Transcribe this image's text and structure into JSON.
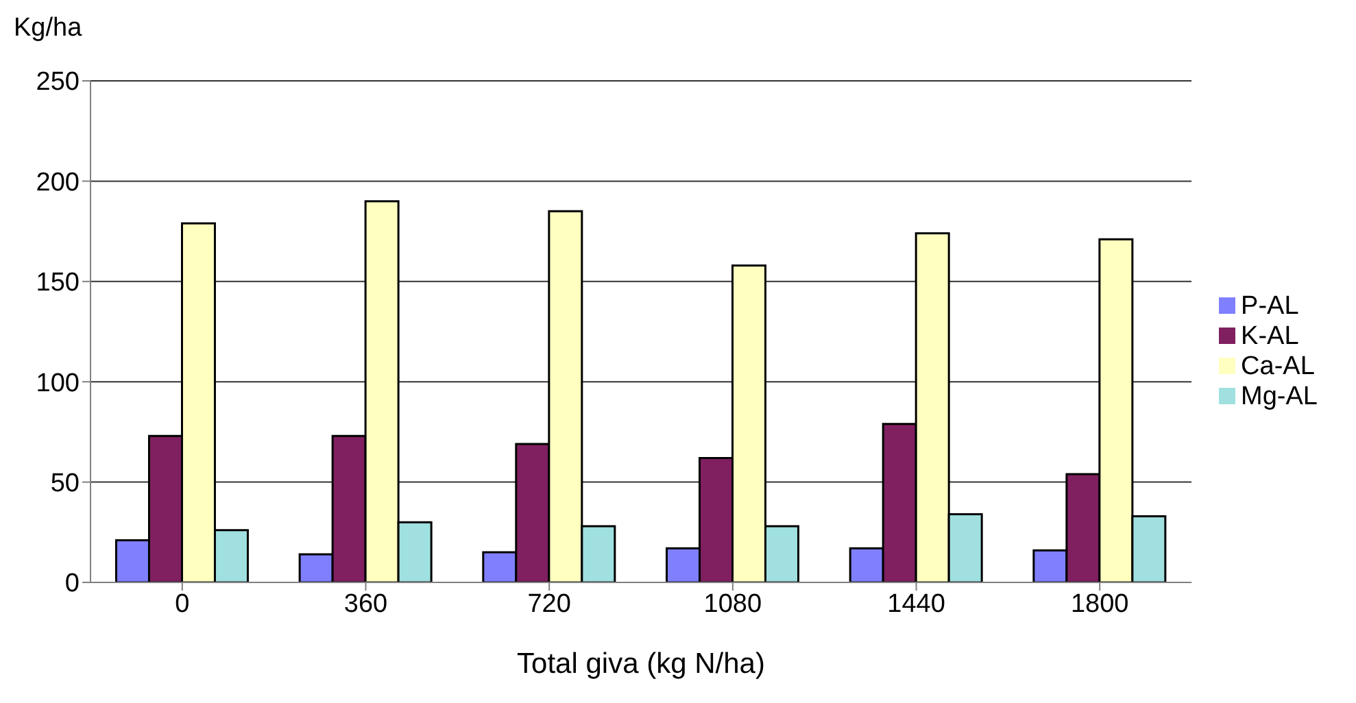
{
  "chart_data": {
    "type": "bar",
    "xlabel": "Total giva (kg N/ha)",
    "ylabel": "Kg/ha",
    "categories": [
      "0",
      "360",
      "720",
      "1080",
      "1440",
      "1800"
    ],
    "series": [
      {
        "name": "P-AL",
        "color": "#8080ff",
        "values": [
          21,
          14,
          15,
          17,
          17,
          16
        ]
      },
      {
        "name": "K-AL",
        "color": "#802060",
        "values": [
          73,
          73,
          69,
          62,
          79,
          54
        ]
      },
      {
        "name": "Ca-AL",
        "color": "#ffffc0",
        "values": [
          179,
          190,
          185,
          158,
          174,
          171
        ]
      },
      {
        "name": "Mg-AL",
        "color": "#a0e0e0",
        "values": [
          26,
          30,
          28,
          28,
          34,
          33
        ]
      }
    ],
    "ylim": [
      0,
      250
    ],
    "yticks": [
      0,
      50,
      100,
      150,
      200,
      250
    ],
    "grid": "y",
    "legend": "right"
  }
}
